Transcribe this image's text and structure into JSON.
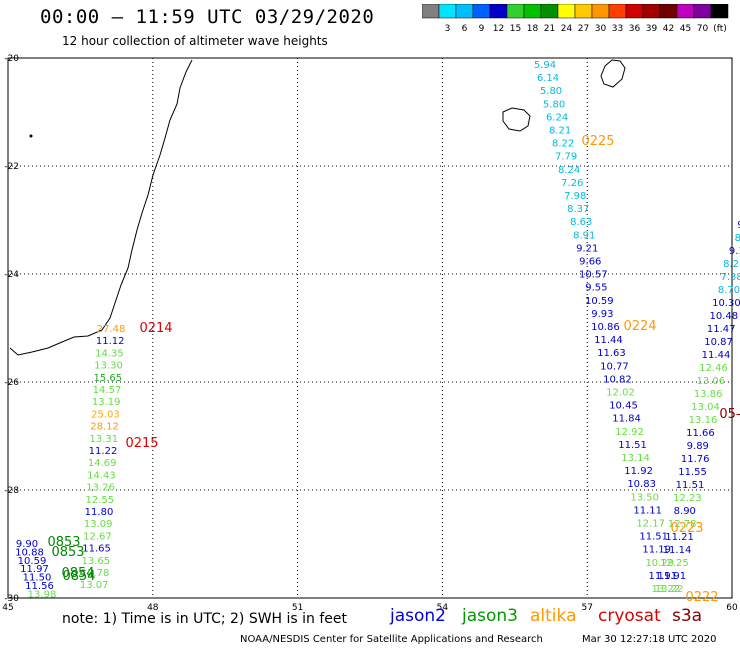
{
  "header": {
    "title": "00:00 – 11:59 UTC 03/29/2020",
    "subtitle": "12 hour collection of altimeter wave heights"
  },
  "colorbar": {
    "unit": "(ft)",
    "colors": [
      "#808080",
      "#00e5ff",
      "#00bfff",
      "#0060ff",
      "#0000c8",
      "#30d030",
      "#00c000",
      "#009000",
      "#ffff00",
      "#ffc800",
      "#ff9600",
      "#ff4000",
      "#d00000",
      "#a00000",
      "#700000",
      "#c000c0",
      "#8000a0",
      "#000000"
    ],
    "labels": [
      "3",
      "6",
      "9",
      "12",
      "15",
      "18",
      "21",
      "24",
      "27",
      "30",
      "33",
      "36",
      "39",
      "42",
      "45",
      "70"
    ]
  },
  "axes": {
    "x_ticks": [
      "45",
      "48",
      "51",
      "54",
      "57",
      "60"
    ],
    "y_ticks": [
      "-20",
      "-22",
      "-24",
      "-26",
      "-28",
      "-30"
    ]
  },
  "passes": [
    {
      "time": "0214",
      "color": "#dd0000"
    },
    {
      "time": "0215",
      "color": "#dd0000"
    },
    {
      "time": "0225",
      "color": "#ff9900"
    },
    {
      "time": "0224",
      "color": "#ff9900"
    },
    {
      "time": "0223",
      "color": "#ff9900"
    },
    {
      "time": "0222",
      "color": "#ff9900"
    },
    {
      "time": "0853",
      "color": "#008800"
    },
    {
      "time": "0853",
      "color": "#008800"
    },
    {
      "time": "0854",
      "color": "#008800"
    },
    {
      "time": "0854",
      "color": "#008800"
    },
    {
      "time": "05-",
      "color": "#880000"
    }
  ],
  "tracks": {
    "left_track": [
      {
        "v": "27.48",
        "c": "#ff9900"
      },
      {
        "v": "11.12",
        "c": "#0000cc"
      },
      {
        "v": "14.35",
        "c": "#66dd44"
      },
      {
        "v": "13.30",
        "c": "#66dd44"
      },
      {
        "v": "15.65",
        "c": "#22aa22"
      },
      {
        "v": "14.57",
        "c": "#66dd44"
      },
      {
        "v": "13.19",
        "c": "#66dd44"
      },
      {
        "v": "25.03",
        "c": "#ffaa00"
      },
      {
        "v": "28.12",
        "c": "#ff9900"
      },
      {
        "v": "13.31",
        "c": "#66dd44"
      },
      {
        "v": "11.22",
        "c": "#0000cc"
      },
      {
        "v": "14.69",
        "c": "#66dd44"
      },
      {
        "v": "14.43",
        "c": "#66dd44"
      },
      {
        "v": "13.26",
        "c": "#66dd44"
      },
      {
        "v": "12.55",
        "c": "#66dd44"
      },
      {
        "v": "11.80",
        "c": "#0000cc"
      },
      {
        "v": "13.09",
        "c": "#66dd44"
      },
      {
        "v": "12.67",
        "c": "#66dd44"
      },
      {
        "v": "11.65",
        "c": "#0000cc"
      },
      {
        "v": "13.65",
        "c": "#66dd44"
      },
      {
        "v": "12.78",
        "c": "#66dd44"
      },
      {
        "v": "13.07",
        "c": "#66dd44"
      }
    ],
    "corner_track": [
      {
        "v": "9.90",
        "c": "#0000cc"
      },
      {
        "v": "10.88",
        "c": "#0000cc"
      },
      {
        "v": "10.59",
        "c": "#0000cc"
      },
      {
        "v": "11.97",
        "c": "#0000cc"
      },
      {
        "v": "11.50",
        "c": "#0000cc"
      },
      {
        "v": "11.56",
        "c": "#0000cc"
      },
      {
        "v": "13.98",
        "c": "#66dd44"
      }
    ],
    "east_track": [
      {
        "v": "5.94",
        "c": "#00bbdd"
      },
      {
        "v": "6.14",
        "c": "#00bbdd"
      },
      {
        "v": "5.80",
        "c": "#00bbdd"
      },
      {
        "v": "5.80",
        "c": "#00bbdd"
      },
      {
        "v": "6.24",
        "c": "#00bbdd"
      },
      {
        "v": "8.21",
        "c": "#00bbdd"
      },
      {
        "v": "8.22",
        "c": "#00bbdd"
      },
      {
        "v": "7.79",
        "c": "#00bbdd"
      },
      {
        "v": "8.24",
        "c": "#00bbdd"
      },
      {
        "v": "7.26",
        "c": "#00bbdd"
      },
      {
        "v": "7.98",
        "c": "#00bbdd"
      },
      {
        "v": "8.37",
        "c": "#00bbdd"
      },
      {
        "v": "8.63",
        "c": "#00bbdd"
      },
      {
        "v": "8.91",
        "c": "#00bbdd"
      },
      {
        "v": "9.21",
        "c": "#0000cc"
      },
      {
        "v": "9.66",
        "c": "#0000cc"
      },
      {
        "v": "10.57",
        "c": "#0000cc"
      },
      {
        "v": "9.55",
        "c": "#0000cc"
      },
      {
        "v": "10.59",
        "c": "#0000cc"
      },
      {
        "v": "9.93",
        "c": "#0000cc"
      },
      {
        "v": "10.86",
        "c": "#0000cc"
      },
      {
        "v": "11.44",
        "c": "#0000cc"
      },
      {
        "v": "11.63",
        "c": "#0000cc"
      },
      {
        "v": "10.77",
        "c": "#0000cc"
      },
      {
        "v": "10.82",
        "c": "#0000cc"
      },
      {
        "v": "12.02",
        "c": "#66dd44"
      },
      {
        "v": "10.45",
        "c": "#0000cc"
      },
      {
        "v": "11.84",
        "c": "#0000cc"
      },
      {
        "v": "12.92",
        "c": "#66dd44"
      },
      {
        "v": "11.51",
        "c": "#0000cc"
      },
      {
        "v": "13.14",
        "c": "#66dd44"
      },
      {
        "v": "11.92",
        "c": "#0000cc"
      },
      {
        "v": "10.83",
        "c": "#0000cc"
      },
      {
        "v": "13.50",
        "c": "#66dd44"
      },
      {
        "v": "11.11",
        "c": "#0000cc"
      },
      {
        "v": "12.17",
        "c": "#66dd44"
      },
      {
        "v": "11.51",
        "c": "#0000cc"
      },
      {
        "v": "11.19",
        "c": "#0000cc"
      },
      {
        "v": "10.29",
        "c": "#66dd44"
      },
      {
        "v": "11.91",
        "c": "#0000cc"
      },
      {
        "v": "13.22",
        "c": "#66dd44"
      }
    ],
    "far_east_track": [
      {
        "v": "9.",
        "c": "#0000cc"
      },
      {
        "v": "8.",
        "c": "#00bbdd"
      },
      {
        "v": "9.1",
        "c": "#0000cc"
      },
      {
        "v": "8.28",
        "c": "#00bbdd"
      },
      {
        "v": "7.38",
        "c": "#00bbdd"
      },
      {
        "v": "8.70",
        "c": "#00bbdd"
      },
      {
        "v": "10.30",
        "c": "#0000cc"
      },
      {
        "v": "10.48",
        "c": "#0000cc"
      },
      {
        "v": "11.47",
        "c": "#0000cc"
      },
      {
        "v": "10.87",
        "c": "#0000cc"
      },
      {
        "v": "11.44",
        "c": "#0000cc"
      },
      {
        "v": "12.46",
        "c": "#66dd44"
      },
      {
        "v": "13.06",
        "c": "#66dd44"
      },
      {
        "v": "13.86",
        "c": "#66dd44"
      },
      {
        "v": "13.04",
        "c": "#66dd44"
      },
      {
        "v": "13.16",
        "c": "#66dd44"
      },
      {
        "v": "11.66",
        "c": "#0000cc"
      },
      {
        "v": "9.89",
        "c": "#0000cc"
      },
      {
        "v": "11.76",
        "c": "#0000cc"
      },
      {
        "v": "11.55",
        "c": "#0000cc"
      },
      {
        "v": "11.51",
        "c": "#0000cc"
      },
      {
        "v": "12.23",
        "c": "#66dd44"
      },
      {
        "v": "8.90",
        "c": "#0000cc"
      },
      {
        "v": "12.78",
        "c": "#66dd44"
      },
      {
        "v": "11.21",
        "c": "#0000cc"
      },
      {
        "v": "11.14",
        "c": "#0000cc"
      },
      {
        "v": "12.25",
        "c": "#66dd44"
      },
      {
        "v": "11.91",
        "c": "#0000cc"
      },
      {
        "v": "13.22",
        "c": "#66dd44"
      }
    ]
  },
  "note": "note:  1) Time is in UTC;  2) SWH is in feet",
  "legend": [
    {
      "name": "jason2",
      "color": "#0000dd"
    },
    {
      "name": "jason3",
      "color": "#009900"
    },
    {
      "name": "altika",
      "color": "#ff9900"
    },
    {
      "name": "cryosat",
      "color": "#dd0000"
    },
    {
      "name": "s3a",
      "color": "#880000"
    }
  ],
  "footer": {
    "left": "NOAA/NESDIS Center for Satellite Applications and Research",
    "right": "Mar 30 12:27:18 UTC 2020"
  }
}
